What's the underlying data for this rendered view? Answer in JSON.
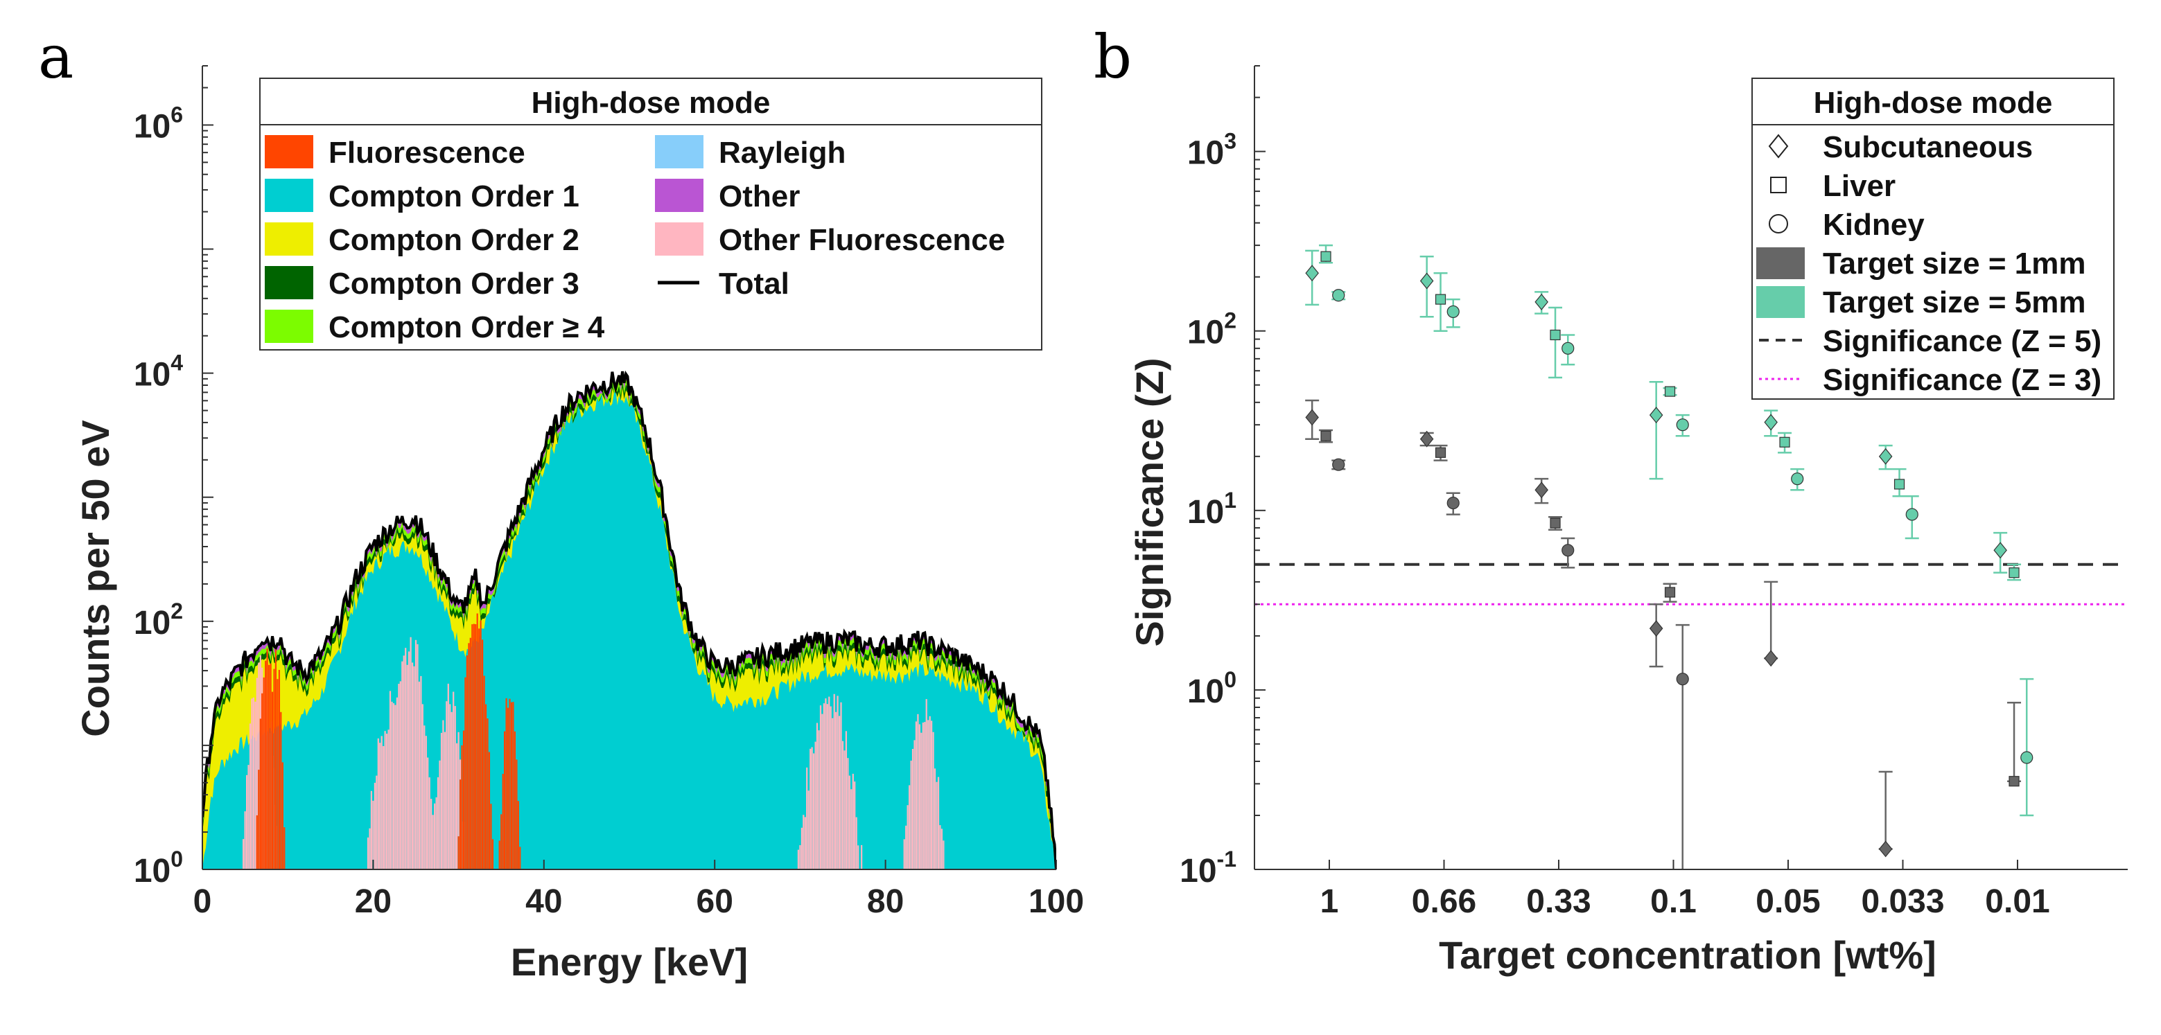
{
  "panels": {
    "a": {
      "letter": "a"
    },
    "b": {
      "letter": "b"
    }
  },
  "colors": {
    "fluorescence": "#ff4500",
    "compton1": "#00ced1",
    "compton2": "#eeee00",
    "compton3": "#006400",
    "compton4": "#7cfc00",
    "rayleigh": "#87cefa",
    "other": "#ba55d3",
    "other_fluorescence": "#ffb6c1",
    "total": "#000000",
    "size_1mm": "#666666",
    "size_5mm": "#66cdaa",
    "z5_line": "#333333",
    "z3_line": "#ee22ee"
  },
  "chart_data": [
    {
      "type": "area",
      "id": "a",
      "title": "",
      "xlabel": "Energy [keV]",
      "ylabel": "Counts per 50 eV",
      "xlim": [
        0,
        100
      ],
      "ylim": [
        1,
        3000000
      ],
      "yscale": "log",
      "x_ticks": [
        "0",
        "20",
        "40",
        "60",
        "80",
        "100"
      ],
      "y_ticks": [
        {
          "base": "10",
          "exp": "0"
        },
        {
          "base": "10",
          "exp": "2"
        },
        {
          "base": "10",
          "exp": "4"
        },
        {
          "base": "10",
          "exp": "6"
        }
      ],
      "legend": {
        "title": "High-dose mode",
        "placement": "top-right",
        "entries": [
          {
            "key": "fluorescence",
            "label": "Fluorescence",
            "kind": "patch"
          },
          {
            "key": "rayleigh",
            "label": "Rayleigh",
            "kind": "patch"
          },
          {
            "key": "compton1",
            "label": "Compton Order 1",
            "kind": "patch"
          },
          {
            "key": "other",
            "label": "Other",
            "kind": "patch"
          },
          {
            "key": "compton2",
            "label": "Compton Order 2",
            "kind": "patch"
          },
          {
            "key": "other_fluorescence",
            "label": "Other Fluorescence",
            "kind": "patch"
          },
          {
            "key": "compton3",
            "label": "Compton Order 3",
            "kind": "patch"
          },
          {
            "key": "total",
            "label": "Total",
            "kind": "line"
          },
          {
            "key": "compton4",
            "label": "Compton Order ≥ 4",
            "kind": "patch"
          }
        ]
      },
      "compton1_envelope": {
        "x": [
          0,
          1,
          2,
          4,
          6,
          8,
          10,
          12,
          14,
          16,
          18,
          20,
          22,
          24,
          25,
          26,
          28,
          30,
          31,
          32,
          33,
          34,
          36,
          38,
          40,
          42,
          44,
          46,
          48,
          49,
          50,
          52,
          54,
          56,
          58,
          60,
          62,
          64,
          66,
          68,
          70,
          72,
          74,
          76,
          78,
          80,
          82,
          84,
          86,
          88,
          90,
          92,
          94,
          96,
          98,
          99,
          100
        ],
        "y": [
          1,
          4,
          7,
          10,
          12,
          14,
          15,
          18,
          28,
          60,
          150,
          280,
          380,
          420,
          400,
          300,
          150,
          70,
          60,
          70,
          90,
          150,
          350,
          800,
          1800,
          3500,
          5000,
          6000,
          6600,
          6700,
          6000,
          2500,
          600,
          110,
          45,
          25,
          22,
          24,
          25,
          30,
          36,
          40,
          42,
          42,
          38,
          38,
          38,
          42,
          38,
          34,
          30,
          24,
          16,
          12,
          8,
          3,
          1
        ]
      },
      "total_envelope": {
        "x": [
          0,
          1,
          2,
          4,
          6,
          7,
          8,
          9,
          10,
          12,
          14,
          16,
          18,
          20,
          22,
          24,
          25,
          26,
          28,
          30,
          31,
          32,
          33,
          34,
          36,
          38,
          40,
          42,
          44,
          46,
          48,
          49,
          50,
          52,
          54,
          56,
          58,
          60,
          62,
          64,
          66,
          68,
          70,
          72,
          74,
          76,
          78,
          80,
          82,
          84,
          86,
          88,
          90,
          92,
          94,
          96,
          98,
          99,
          100
        ],
        "y": [
          3,
          12,
          25,
          40,
          60,
          80,
          70,
          80,
          50,
          40,
          55,
          100,
          230,
          420,
          580,
          680,
          700,
          520,
          260,
          130,
          150,
          230,
          140,
          220,
          520,
          1150,
          2500,
          4800,
          6800,
          8000,
          8800,
          9000,
          8000,
          3500,
          900,
          160,
          70,
          45,
          45,
          50,
          55,
          60,
          65,
          70,
          72,
          72,
          65,
          65,
          68,
          72,
          62,
          55,
          45,
          38,
          28,
          18,
          12,
          5,
          1
        ]
      },
      "fluorescence_peaks": [
        {
          "center": 7.5,
          "width": 0.45,
          "peak": 60
        },
        {
          "center": 8.7,
          "width": 0.35,
          "peak": 50
        },
        {
          "center": 32.0,
          "width": 0.7,
          "peak": 130
        },
        {
          "center": 36.0,
          "width": 0.5,
          "peak": 28
        }
      ],
      "other_fluorescence_peaks": [
        {
          "center": 6.8,
          "width": 0.8,
          "peak": 45
        },
        {
          "center": 22.0,
          "width": 1.2,
          "peak": 20
        },
        {
          "center": 24.5,
          "width": 1.0,
          "peak": 70
        },
        {
          "center": 29.0,
          "width": 0.7,
          "peak": 30
        },
        {
          "center": 73.5,
          "width": 1.5,
          "peak": 28
        },
        {
          "center": 84.5,
          "width": 1.0,
          "peak": 22
        }
      ]
    },
    {
      "type": "scatter",
      "id": "b",
      "title": "",
      "xlabel": "Target concentration [wt%]",
      "ylabel": "Significance (Z)",
      "yscale": "log",
      "ylim": [
        0.1,
        3000
      ],
      "categories": [
        "1",
        "0.66",
        "0.33",
        "0.1",
        "0.05",
        "0.033",
        "0.01"
      ],
      "y_ticks": [
        {
          "base": "10",
          "exp": "-1"
        },
        {
          "base": "10",
          "exp": "0"
        },
        {
          "base": "10",
          "exp": "1"
        },
        {
          "base": "10",
          "exp": "2"
        },
        {
          "base": "10",
          "exp": "3"
        }
      ],
      "reference_lines": [
        {
          "key": "z5_line",
          "value": 5,
          "style": "dashed"
        },
        {
          "key": "z3_line",
          "value": 3,
          "style": "dotted"
        }
      ],
      "legend": {
        "title": "High-dose mode",
        "placement": "top-right",
        "entries": [
          {
            "kind": "marker",
            "marker": "diamond",
            "label": "Subcutaneous"
          },
          {
            "kind": "marker",
            "marker": "square",
            "label": "Liver"
          },
          {
            "kind": "marker",
            "marker": "circle",
            "label": "Kidney"
          },
          {
            "kind": "patch",
            "key": "size_1mm",
            "label": "Target size = 1mm"
          },
          {
            "kind": "patch",
            "key": "size_5mm",
            "label": "Target size = 5mm"
          },
          {
            "kind": "line",
            "key": "z5_line",
            "style": "dashed",
            "label": "Significance (Z = 5)"
          },
          {
            "kind": "line",
            "key": "z3_line",
            "style": "dotted",
            "label": "Significance (Z = 3)"
          }
        ]
      },
      "series": [
        {
          "name": "Subcutaneous 5mm",
          "marker": "diamond",
          "size": "5mm",
          "offset": -0.15,
          "values": [
            210,
            190,
            145,
            34,
            31,
            20,
            6
          ],
          "err_low": [
            140,
            120,
            125,
            15,
            26,
            17,
            4.5
          ],
          "err_high": [
            280,
            260,
            165,
            52,
            36,
            23,
            7.5
          ]
        },
        {
          "name": "Liver 5mm",
          "marker": "square",
          "size": "5mm",
          "offset": -0.03,
          "values": [
            260,
            150,
            95,
            46,
            24,
            14,
            4.5
          ],
          "err_low": [
            240,
            100,
            55,
            44,
            21,
            12,
            4.1
          ],
          "err_high": [
            300,
            210,
            135,
            48,
            27,
            17,
            5.0
          ]
        },
        {
          "name": "Kidney 5mm",
          "marker": "circle",
          "size": "5mm",
          "offset": 0.08,
          "values": [
            158,
            128,
            80,
            30,
            15,
            9.5,
            0.42
          ],
          "err_low": [
            150,
            105,
            65,
            26,
            13,
            7,
            0.2
          ],
          "err_high": [
            165,
            150,
            95,
            34,
            17,
            12,
            1.15
          ]
        },
        {
          "name": "Subcutaneous 1mm",
          "marker": "diamond",
          "size": "1mm",
          "offset": -0.15,
          "values": [
            33,
            25,
            13,
            2.2,
            1.5,
            0.13,
            null
          ],
          "err_low": [
            25,
            23,
            11,
            1.35,
            1.5,
            0.13,
            null
          ],
          "err_high": [
            41,
            27,
            15,
            3.0,
            4.0,
            0.35,
            null
          ]
        },
        {
          "name": "Liver 1mm",
          "marker": "square",
          "size": "1mm",
          "offset": -0.03,
          "values": [
            26,
            21,
            8.5,
            3.5,
            null,
            null,
            0.31
          ],
          "err_low": [
            24,
            19,
            7.8,
            3.1,
            null,
            null,
            0.31
          ],
          "err_high": [
            28,
            23,
            9.2,
            3.9,
            null,
            null,
            0.85
          ]
        },
        {
          "name": "Kidney 1mm",
          "marker": "circle",
          "size": "1mm",
          "offset": 0.08,
          "values": [
            18,
            11,
            6,
            1.15,
            null,
            null,
            null
          ],
          "err_low": [
            17,
            9.5,
            4.8,
            0.1,
            null,
            null,
            null
          ],
          "err_high": [
            19,
            12.5,
            7,
            2.3,
            null,
            null,
            null
          ]
        }
      ]
    }
  ]
}
